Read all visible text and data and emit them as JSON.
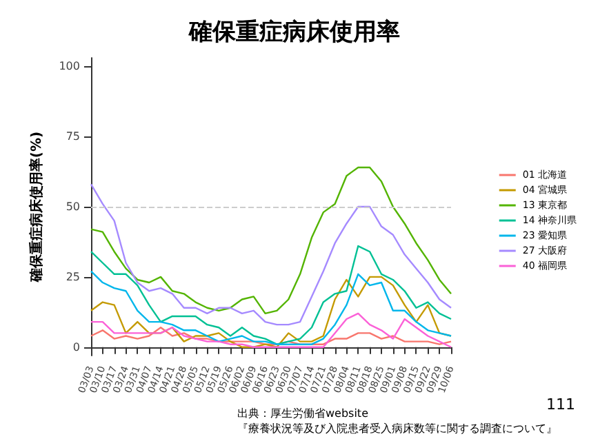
{
  "chart_data": {
    "type": "line",
    "title": "確保重症病床使用率",
    "ylabel": "確保重症病床使用率(%)",
    "categories": [
      "03/03",
      "03/10",
      "03/17",
      "03/24",
      "03/31",
      "04/07",
      "04/14",
      "04/21",
      "04/28",
      "05/05",
      "05/12",
      "05/19",
      "05/26",
      "06/02",
      "06/09",
      "06/16",
      "06/23",
      "06/30",
      "07/07",
      "07/14",
      "07/21",
      "07/28",
      "08/04",
      "08/11",
      "08/18",
      "08/25",
      "09/01",
      "09/08",
      "09/15",
      "09/22",
      "09/29",
      "10/06"
    ],
    "series": [
      {
        "name": "01 北海道",
        "color": "#f8766d",
        "values": [
          4,
          6,
          3,
          4,
          3,
          4,
          7,
          4,
          5,
          3,
          3,
          2,
          2,
          2,
          2,
          1,
          1,
          2,
          1,
          1,
          1,
          3,
          3,
          5,
          5,
          3,
          4,
          2,
          2,
          2,
          1,
          2
        ]
      },
      {
        "name": "04 宮城県",
        "color": "#c49a00",
        "values": [
          13,
          16,
          15,
          5,
          9,
          5,
          5,
          7,
          2,
          4,
          4,
          5,
          2,
          0,
          0,
          1,
          0,
          5,
          2,
          2,
          4,
          17,
          24,
          18,
          25,
          25,
          22,
          15,
          9,
          15,
          5,
          4
        ]
      },
      {
        "name": "13 東京都",
        "color": "#53b400",
        "values": [
          42,
          41,
          34,
          28,
          24,
          23,
          25,
          20,
          19,
          16,
          14,
          13,
          14,
          17,
          18,
          12,
          13,
          17,
          26,
          39,
          48,
          51,
          61,
          64,
          64,
          59,
          50,
          44,
          37,
          31,
          24,
          19
        ]
      },
      {
        "name": "14 神奈川県",
        "color": "#00c094",
        "values": [
          34,
          30,
          26,
          26,
          22,
          15,
          9,
          11,
          11,
          11,
          8,
          7,
          4,
          7,
          4,
          3,
          1,
          2,
          3,
          7,
          16,
          19,
          20,
          36,
          34,
          26,
          24,
          20,
          14,
          16,
          12,
          10
        ]
      },
      {
        "name": "23 愛知県",
        "color": "#00b6eb",
        "values": [
          27,
          23,
          21,
          20,
          13,
          9,
          9,
          8,
          6,
          6,
          4,
          2,
          3,
          4,
          2,
          2,
          1,
          1,
          1,
          1,
          3,
          8,
          15,
          26,
          22,
          23,
          13,
          13,
          9,
          6,
          5,
          4
        ]
      },
      {
        "name": "27 大阪府",
        "color": "#a58aff",
        "values": [
          58,
          51,
          45,
          30,
          23,
          20,
          21,
          19,
          14,
          14,
          12,
          14,
          14,
          12,
          13,
          9,
          8,
          8,
          9,
          18,
          27,
          37,
          44,
          50,
          50,
          43,
          40,
          33,
          28,
          23,
          17,
          14
        ]
      },
      {
        "name": "40 福岡県",
        "color": "#fb61d7",
        "values": [
          9,
          9,
          5,
          5,
          5,
          5,
          5,
          7,
          4,
          3,
          2,
          2,
          1,
          1,
          0,
          0,
          0,
          0,
          0,
          0,
          0,
          5,
          10,
          12,
          8,
          6,
          3,
          10,
          7,
          4,
          2,
          0
        ]
      }
    ],
    "ylim": [
      -3,
      103
    ],
    "yticks": [
      0,
      25,
      50,
      75,
      100
    ],
    "grid": false,
    "legend": "right",
    "marker": "none",
    "line_style": "solid",
    "ref_lines": [
      {
        "axis": "y",
        "value": 50,
        "color": "#cccccc",
        "line_style": "dashed"
      }
    ],
    "annotations": [
      "出典：厚生労働省website",
      "『療養状況等及び入院患者受入病床数等に関する調査について』",
      "111"
    ]
  }
}
